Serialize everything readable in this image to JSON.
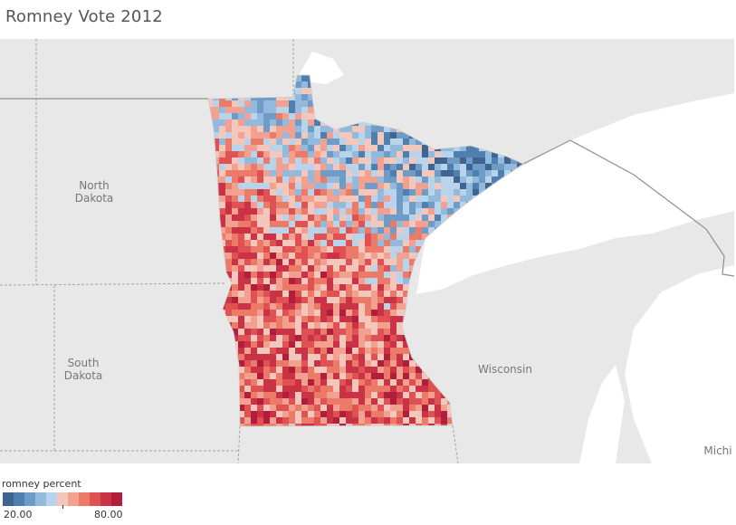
{
  "title": "Romney Vote 2012",
  "map": {
    "labels": {
      "north_dakota_1": "North",
      "north_dakota_2": "Dakota",
      "south_dakota_1": "South",
      "south_dakota_2": "Dakota",
      "wisconsin": "Wisconsin",
      "michigan": "Michi"
    },
    "colors": {
      "background": "#e8e8e8",
      "water": "#ffffff",
      "border": "#9a9a9a"
    }
  },
  "legend": {
    "title": "romney percent",
    "min_label": "20.00",
    "max_label": "80.00",
    "colors": [
      "#3d6590",
      "#4f7fae",
      "#6f9cc7",
      "#93b9dc",
      "#b8d3ea",
      "#f4c7bd",
      "#f2a08f",
      "#ec7a68",
      "#df5153",
      "#c93345",
      "#b01e3c"
    ]
  }
}
